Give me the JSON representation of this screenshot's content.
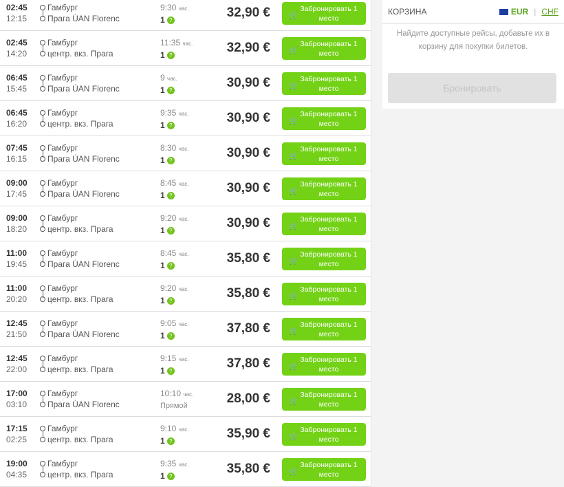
{
  "book_label": "Забронировать 1 место",
  "hours_unit": "час.",
  "cart": {
    "title": "КОРЗИНА",
    "currency_active": "EUR",
    "currency_other": "CHF",
    "message": "Найдите доступные рейсы, добавьте их в корзину для покупки билетов.",
    "book_button": "Бронировать"
  },
  "rows": [
    {
      "dep": "02:45",
      "arr": "12:15",
      "from": "Гамбург",
      "to": "Прага ÚAN Florenc",
      "dur": "9:30",
      "transfers": "1",
      "price": "32,90 €"
    },
    {
      "dep": "02:45",
      "arr": "14:20",
      "from": "Гамбург",
      "to": "центр. вкз. Прага",
      "dur": "11:35",
      "transfers": "1",
      "price": "32,90 €"
    },
    {
      "dep": "06:45",
      "arr": "15:45",
      "from": "Гамбург",
      "to": "Прага ÚAN Florenc",
      "dur": "9",
      "transfers": "1",
      "price": "30,90 €"
    },
    {
      "dep": "06:45",
      "arr": "16:20",
      "from": "Гамбург",
      "to": "центр. вкз. Прага",
      "dur": "9:35",
      "transfers": "1",
      "price": "30,90 €"
    },
    {
      "dep": "07:45",
      "arr": "16:15",
      "from": "Гамбург",
      "to": "Прага ÚAN Florenc",
      "dur": "8:30",
      "transfers": "1",
      "price": "30,90 €"
    },
    {
      "dep": "09:00",
      "arr": "17:45",
      "from": "Гамбург",
      "to": "Прага ÚAN Florenc",
      "dur": "8:45",
      "transfers": "1",
      "price": "30,90 €"
    },
    {
      "dep": "09:00",
      "arr": "18:20",
      "from": "Гамбург",
      "to": "центр. вкз. Прага",
      "dur": "9:20",
      "transfers": "1",
      "price": "30,90 €"
    },
    {
      "dep": "11:00",
      "arr": "19:45",
      "from": "Гамбург",
      "to": "Прага ÚAN Florenc",
      "dur": "8:45",
      "transfers": "1",
      "price": "35,80 €"
    },
    {
      "dep": "11:00",
      "arr": "20:20",
      "from": "Гамбург",
      "to": "центр. вкз. Прага",
      "dur": "9:20",
      "transfers": "1",
      "price": "35,80 €"
    },
    {
      "dep": "12:45",
      "arr": "21:50",
      "from": "Гамбург",
      "to": "Прага ÚAN Florenc",
      "dur": "9:05",
      "transfers": "1",
      "price": "37,80 €"
    },
    {
      "dep": "12:45",
      "arr": "22:00",
      "from": "Гамбург",
      "to": "центр. вкз. Прага",
      "dur": "9:15",
      "transfers": "1",
      "price": "37,80 €"
    },
    {
      "dep": "17:00",
      "arr": "03:10",
      "from": "Гамбург",
      "to": "Прага ÚAN Florenc",
      "dur": "10:10",
      "direct": "Прямой",
      "price": "28,00 €"
    },
    {
      "dep": "17:15",
      "arr": "02:25",
      "from": "Гамбург",
      "to": "центр. вкз. Прага",
      "dur": "9:10",
      "transfers": "1",
      "price": "35,90 €"
    },
    {
      "dep": "19:00",
      "arr": "04:35",
      "from": "Гамбург",
      "to": "центр. вкз. Прага",
      "dur": "9:35",
      "transfers": "1",
      "price": "35,80 €"
    }
  ]
}
